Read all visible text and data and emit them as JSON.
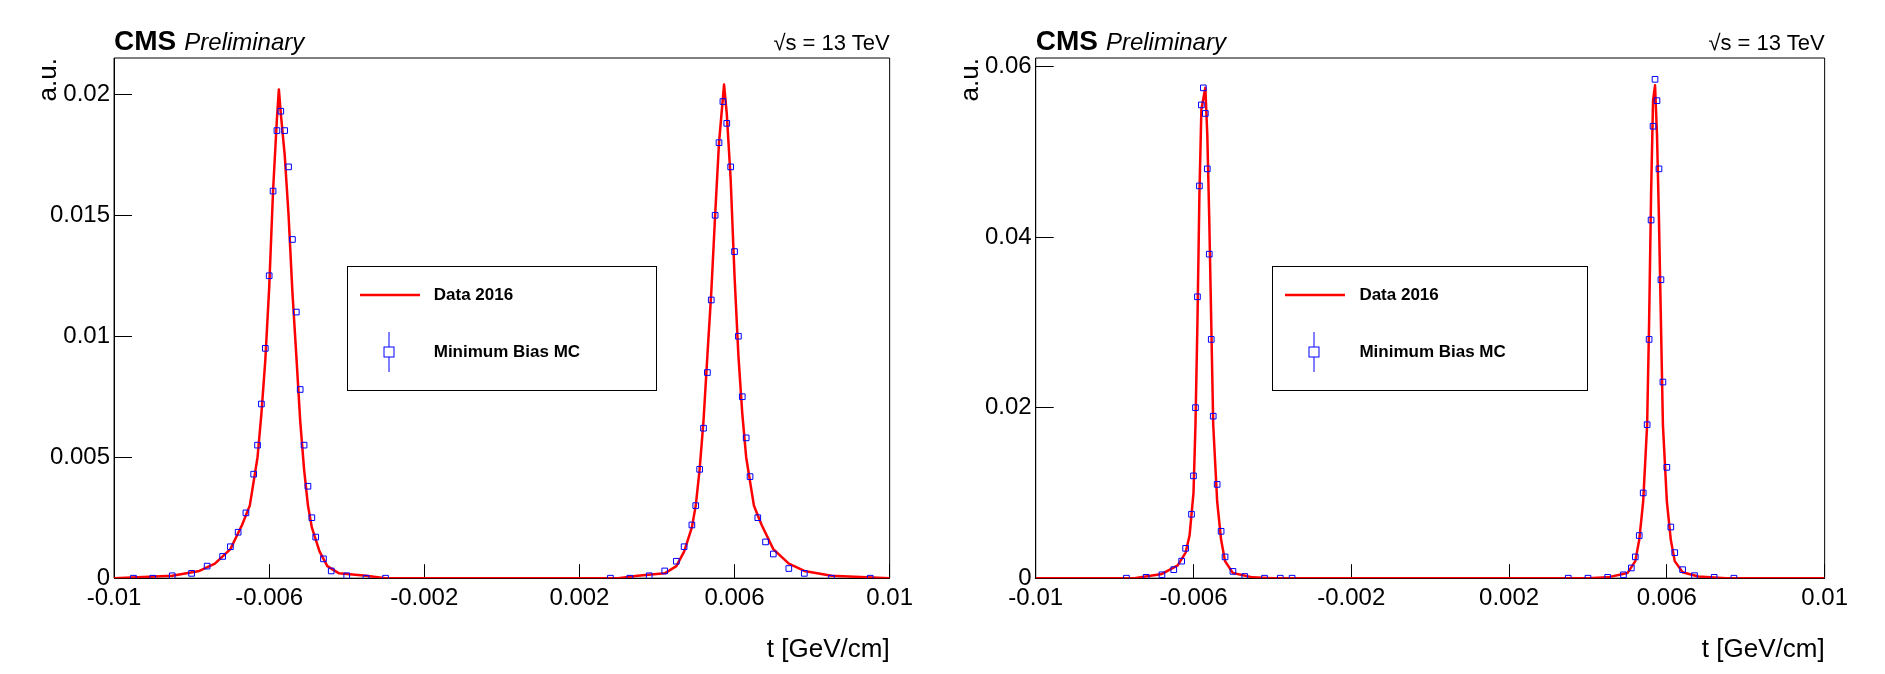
{
  "chart_data": [
    {
      "type": "scatter",
      "title": "CMS",
      "subtitle": "Preliminary",
      "annotations": [
        "√s = 13 TeV"
      ],
      "xlabel": "t [GeV/cm]",
      "ylabel": "a.u.",
      "xlim": [
        -0.01,
        0.01
      ],
      "xticks": [
        -0.01,
        -0.006,
        -0.002,
        0.002,
        0.006,
        0.01
      ],
      "ylim": [
        0,
        0.0215
      ],
      "yticks": [
        0,
        0.005,
        0.01,
        0.015,
        0.02
      ],
      "grid": false,
      "legend": "center",
      "series": [
        {
          "name": "Data 2016",
          "type": "line",
          "color": "#ff0000",
          "marker": "none",
          "line_style": "solid",
          "x": [
            -0.01,
            -0.0085,
            -0.0078,
            -0.0074,
            -0.007,
            -0.0067,
            -0.0065,
            -0.0063,
            -0.0062,
            -0.0061,
            -0.006,
            -0.0059,
            -0.0058,
            -0.00575,
            -0.0057,
            -0.0056,
            -0.0055,
            -0.0054,
            -0.0053,
            -0.0052,
            -0.0051,
            -0.005,
            -0.0049,
            -0.0047,
            -0.0045,
            -0.0042,
            -0.0035,
            -0.003,
            0.003,
            0.0035,
            0.0042,
            0.0045,
            0.0047,
            0.0049,
            0.005,
            0.0051,
            0.0052,
            0.0053,
            0.0054,
            0.0055,
            0.0056,
            0.00573,
            0.0058,
            0.0059,
            0.006,
            0.0061,
            0.0062,
            0.0063,
            0.0065,
            0.0067,
            0.007,
            0.0074,
            0.0078,
            0.0085,
            0.01
          ],
          "values": [
            0,
            0.0001,
            0.0003,
            0.0006,
            0.0012,
            0.0022,
            0.003,
            0.005,
            0.0068,
            0.009,
            0.012,
            0.016,
            0.019,
            0.0202,
            0.0192,
            0.0175,
            0.015,
            0.0118,
            0.0092,
            0.0065,
            0.0045,
            0.003,
            0.0021,
            0.0011,
            0.0005,
            0.0002,
            0.0001,
            0,
            0,
            0.0001,
            0.0002,
            0.0005,
            0.0011,
            0.0021,
            0.003,
            0.0045,
            0.0065,
            0.0092,
            0.0118,
            0.015,
            0.018,
            0.0204,
            0.0192,
            0.0165,
            0.0125,
            0.0092,
            0.0068,
            0.005,
            0.003,
            0.0022,
            0.0012,
            0.0006,
            0.0003,
            0.0001,
            0
          ]
        },
        {
          "name": "Minimum Bias MC",
          "type": "scatter",
          "color": "#0000ff",
          "marker": "square",
          "x": [
            -0.0095,
            -0.009,
            -0.0085,
            -0.008,
            -0.0076,
            -0.0072,
            -0.007,
            -0.0068,
            -0.0066,
            -0.0064,
            -0.0063,
            -0.0062,
            -0.0061,
            -0.006,
            -0.0059,
            -0.0058,
            -0.0057,
            -0.0056,
            -0.0055,
            -0.0054,
            -0.0053,
            -0.0052,
            -0.0051,
            -0.005,
            -0.0049,
            -0.0048,
            -0.0046,
            -0.0044,
            -0.004,
            -0.0035,
            -0.003,
            0.0028,
            0.0033,
            0.0038,
            0.0042,
            0.0045,
            0.0047,
            0.0049,
            0.005,
            0.0051,
            0.0052,
            0.0053,
            0.0054,
            0.0055,
            0.0056,
            0.0057,
            0.0058,
            0.0059,
            0.006,
            0.0061,
            0.0062,
            0.0063,
            0.0064,
            0.0066,
            0.0068,
            0.007,
            0.0074,
            0.0078,
            0.0085,
            0.0095
          ],
          "values": [
            0,
            0,
            0.0001,
            0.0002,
            0.0005,
            0.0009,
            0.0013,
            0.0019,
            0.0027,
            0.0043,
            0.0055,
            0.0072,
            0.0095,
            0.0125,
            0.016,
            0.0185,
            0.0193,
            0.0185,
            0.017,
            0.014,
            0.011,
            0.0078,
            0.0055,
            0.0038,
            0.0025,
            0.0017,
            0.0008,
            0.0003,
            0.0001,
            0,
            0,
            0,
            0,
            0.0001,
            0.0003,
            0.0007,
            0.0013,
            0.0022,
            0.003,
            0.0045,
            0.0062,
            0.0085,
            0.0115,
            0.015,
            0.018,
            0.0197,
            0.0188,
            0.017,
            0.0135,
            0.01,
            0.0075,
            0.0058,
            0.0042,
            0.0025,
            0.0015,
            0.001,
            0.0004,
            0.0002,
            0,
            0
          ]
        }
      ]
    },
    {
      "type": "scatter",
      "title": "CMS",
      "subtitle": "Preliminary",
      "annotations": [
        "√s = 13 TeV"
      ],
      "xlabel": "t [GeV/cm]",
      "ylabel": "a.u.",
      "xlim": [
        -0.01,
        0.01
      ],
      "xticks": [
        -0.01,
        -0.006,
        -0.002,
        0.002,
        0.006,
        0.01
      ],
      "ylim": [
        0,
        0.061
      ],
      "yticks": [
        0,
        0.02,
        0.04,
        0.06
      ],
      "grid": false,
      "legend": "center",
      "series": [
        {
          "name": "Data 2016",
          "type": "line",
          "color": "#ff0000",
          "marker": "none",
          "line_style": "solid",
          "x": [
            -0.01,
            -0.0075,
            -0.0068,
            -0.0064,
            -0.0062,
            -0.0061,
            -0.006,
            -0.00595,
            -0.0059,
            -0.00585,
            -0.0058,
            -0.0057,
            -0.00565,
            -0.0056,
            -0.00555,
            -0.0055,
            -0.0054,
            -0.0053,
            -0.0052,
            -0.005,
            -0.0045,
            -0.004,
            0.004,
            0.0045,
            0.005,
            0.0052,
            0.0053,
            0.0054,
            0.0055,
            0.00555,
            0.0056,
            0.00565,
            0.0057,
            0.00575,
            0.0058,
            0.00585,
            0.0059,
            0.006,
            0.0061,
            0.0062,
            0.0064,
            0.0068,
            0.0075,
            0.01
          ],
          "values": [
            0,
            0,
            0.0005,
            0.0015,
            0.003,
            0.005,
            0.01,
            0.018,
            0.03,
            0.045,
            0.055,
            0.0575,
            0.052,
            0.042,
            0.03,
            0.018,
            0.009,
            0.0045,
            0.002,
            0.0006,
            0.0001,
            0,
            0,
            0.0001,
            0.0006,
            0.002,
            0.0045,
            0.009,
            0.018,
            0.03,
            0.045,
            0.056,
            0.0578,
            0.052,
            0.042,
            0.03,
            0.018,
            0.009,
            0.0045,
            0.002,
            0.0007,
            0.0002,
            0,
            0
          ]
        },
        {
          "name": "Minimum Bias MC",
          "type": "scatter",
          "color": "#0000ff",
          "marker": "square",
          "x": [
            -0.0077,
            -0.0072,
            -0.0068,
            -0.0065,
            -0.0063,
            -0.0062,
            -0.00605,
            -0.006,
            -0.00595,
            -0.0059,
            -0.00585,
            -0.0058,
            -0.00575,
            -0.0057,
            -0.00565,
            -0.0056,
            -0.00555,
            -0.0055,
            -0.0054,
            -0.0053,
            -0.0052,
            -0.005,
            -0.0047,
            -0.0042,
            -0.0038,
            -0.0035,
            0.0035,
            0.004,
            0.0045,
            0.0049,
            0.0051,
            0.0052,
            0.0053,
            0.0054,
            0.0055,
            0.00555,
            0.0056,
            0.00565,
            0.0057,
            0.00575,
            0.0058,
            0.00585,
            0.0059,
            0.006,
            0.0061,
            0.0062,
            0.0064,
            0.0067,
            0.0072,
            0.0077
          ],
          "values": [
            0,
            0.0001,
            0.0004,
            0.001,
            0.002,
            0.0035,
            0.0075,
            0.012,
            0.02,
            0.033,
            0.046,
            0.0555,
            0.0575,
            0.0545,
            0.048,
            0.038,
            0.028,
            0.019,
            0.011,
            0.0055,
            0.0025,
            0.0008,
            0.0002,
            0,
            0,
            0,
            0,
            0,
            0.0001,
            0.0004,
            0.0012,
            0.0025,
            0.005,
            0.01,
            0.018,
            0.028,
            0.042,
            0.053,
            0.0585,
            0.056,
            0.048,
            0.035,
            0.023,
            0.013,
            0.006,
            0.003,
            0.001,
            0.0003,
            0.0001,
            0
          ]
        }
      ]
    }
  ]
}
